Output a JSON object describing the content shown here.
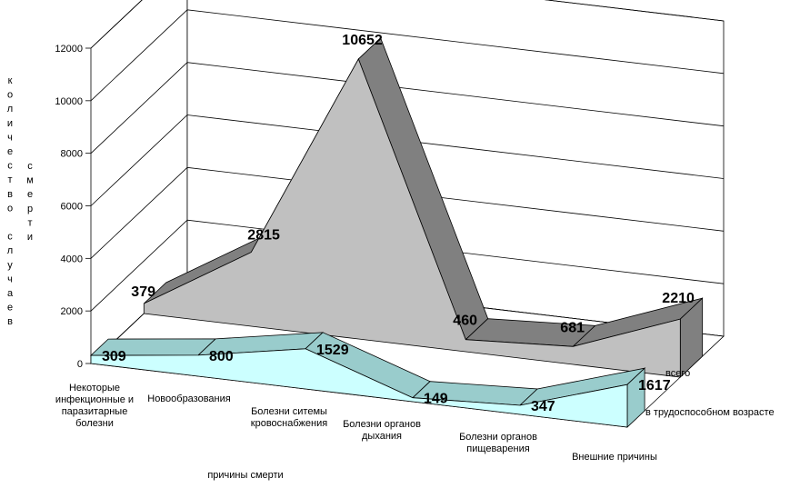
{
  "chart_data": {
    "type": "area",
    "subtype": "3d-area",
    "categories": [
      [
        "Некоторые",
        "инфекционные и",
        "паразитарные",
        "болезни"
      ],
      [
        "Новообразования"
      ],
      [
        "Болезни ситемы",
        "кровоснабжения"
      ],
      [
        "Болезни органов",
        "дыхания"
      ],
      [
        "Болезни органов",
        "пищеварения"
      ],
      [
        "Внешние причины"
      ]
    ],
    "series": [
      {
        "name": "в трудоспособном возрасте",
        "values": [
          309,
          800,
          1529,
          149,
          347,
          1617
        ]
      },
      {
        "name": "всего",
        "values": [
          379,
          2815,
          10652,
          460,
          681,
          2210
        ]
      }
    ],
    "y_ticks": [
      "0",
      "2000",
      "4000",
      "6000",
      "8000",
      "10000",
      "12000"
    ],
    "ylim": [
      0,
      12000
    ],
    "ylabel_col1": [
      "к",
      "о",
      "л",
      "и",
      "ч",
      "е",
      "с",
      "т",
      "в",
      "о",
      " ",
      "с",
      "л",
      "у",
      "ч",
      "а",
      "е",
      "в"
    ],
    "ylabel_col2": [
      "с",
      "м",
      "е",
      "р",
      "т",
      "и"
    ],
    "xlabel": "причины смерти",
    "grid": true,
    "colors": {
      "front_fill": "#ccffff",
      "front_ribbon": "#99cccc",
      "back_fill": "#c0c0c0",
      "back_ribbon": "#808080"
    }
  }
}
